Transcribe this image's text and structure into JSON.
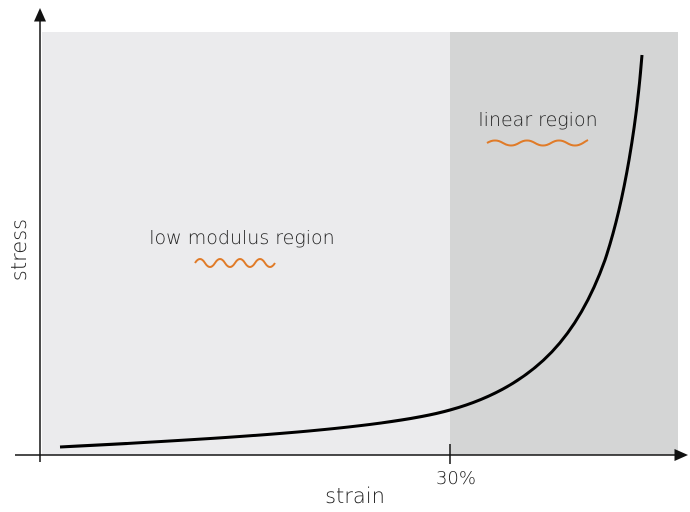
{
  "y_axis_label": "stress",
  "x_axis_label": "strain",
  "x_marker_label": "30%",
  "regions": [
    {
      "label": "low modulus region"
    },
    {
      "label": "linear region"
    }
  ]
}
